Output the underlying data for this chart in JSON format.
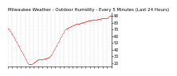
{
  "title": "Milwaukee Weather - Outdoor Humidity - Every 5 Minutes (Last 24 Hours)",
  "background_color": "#ffffff",
  "plot_bg_color": "#ffffff",
  "line_color": "#ff0000",
  "grid_color": "#aaaaaa",
  "ylim": [
    15,
    95
  ],
  "yticks": [
    20,
    30,
    40,
    50,
    60,
    70,
    80,
    90
  ],
  "humidity_data": [
    72,
    71,
    70,
    70,
    69,
    68,
    68,
    67,
    66,
    65,
    64,
    63,
    62,
    62,
    61,
    60,
    59,
    58,
    57,
    56,
    55,
    54,
    53,
    52,
    51,
    50,
    49,
    48,
    47,
    46,
    45,
    44,
    43,
    42,
    41,
    40,
    39,
    38,
    37,
    36,
    35,
    34,
    33,
    32,
    31,
    30,
    29,
    28,
    27,
    26,
    25,
    24,
    23,
    22,
    21,
    20,
    20,
    19,
    19,
    18,
    18,
    18,
    18,
    18,
    18,
    19,
    19,
    19,
    20,
    20,
    20,
    21,
    21,
    21,
    22,
    22,
    22,
    23,
    23,
    23,
    24,
    24,
    24,
    25,
    25,
    25,
    25,
    25,
    25,
    26,
    26,
    26,
    26,
    26,
    26,
    26,
    26,
    26,
    26,
    27,
    27,
    27,
    27,
    27,
    27,
    27,
    27,
    28,
    28,
    28,
    28,
    28,
    28,
    29,
    29,
    29,
    30,
    30,
    31,
    31,
    32,
    33,
    34,
    35,
    36,
    37,
    38,
    39,
    40,
    41,
    42,
    43,
    44,
    45,
    46,
    47,
    48,
    49,
    50,
    51,
    52,
    53,
    54,
    55,
    56,
    57,
    58,
    59,
    60,
    61,
    62,
    63,
    64,
    65,
    66,
    67,
    68,
    69,
    69,
    70,
    70,
    71,
    71,
    72,
    72,
    72,
    73,
    73,
    73,
    73,
    74,
    74,
    74,
    74,
    75,
    75,
    75,
    75,
    75,
    76,
    76,
    76,
    76,
    76,
    77,
    77,
    77,
    77,
    77,
    78,
    78,
    78,
    78,
    78,
    79,
    79,
    79,
    79,
    79,
    79,
    80,
    80,
    80,
    80,
    80,
    80,
    80,
    81,
    81,
    81,
    81,
    81,
    81,
    81,
    82,
    82,
    82,
    82,
    82,
    82,
    82,
    83,
    83,
    83,
    83,
    83,
    83,
    83,
    83,
    83,
    83,
    84,
    84,
    84,
    84,
    84,
    84,
    84,
    84,
    84,
    84,
    85,
    85,
    85,
    85,
    85,
    85,
    85,
    85,
    86,
    86,
    86,
    86,
    86,
    86,
    86,
    86,
    86,
    87,
    87,
    87,
    87,
    87,
    87,
    87,
    87,
    87,
    87,
    87,
    87,
    87,
    87,
    87,
    87,
    87,
    87,
    87,
    88,
    88,
    89,
    89,
    90,
    90,
    90,
    90,
    90,
    90,
    90
  ],
  "title_fontsize": 4.0,
  "tick_fontsize": 3.5,
  "marker_size": 0.8,
  "num_xticks": 25,
  "num_gridlines": 25
}
